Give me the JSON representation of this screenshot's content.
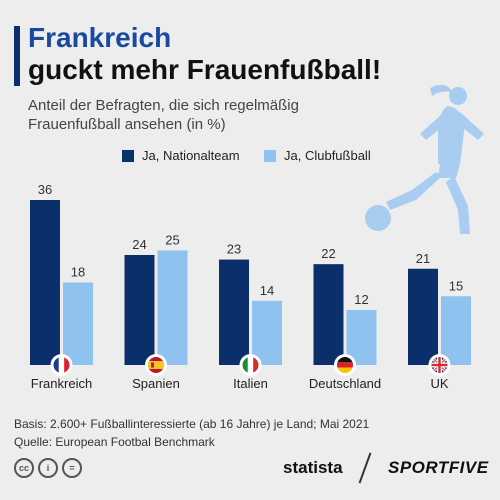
{
  "title_line1": "Frankreich",
  "title_line2": "guckt mehr Frauenfußball!",
  "subtitle": "Anteil der Befragten, die sich regelmäßig Frauenfußball ansehen (in %)",
  "footnote_basis": "Basis: 2.600+ Fußballinteressierte (ab 16 Jahre) je Land; Mai 2021",
  "footnote_source": "Quelle: European Footbal Benchmark",
  "brand_statista": "statista",
  "brand_sportfive": "SPORTFIVE",
  "colors": {
    "national": "#0a2f6b",
    "club": "#8fc2ee",
    "title_accent": "#1a4aa0"
  },
  "chart_data": {
    "type": "bar",
    "categories": [
      "Frankreich",
      "Spanien",
      "Italien",
      "Deutschland",
      "UK"
    ],
    "series": [
      {
        "name": "Ja, Nationalteam",
        "values": [
          36,
          24,
          23,
          22,
          21
        ]
      },
      {
        "name": "Ja, Clubfußball",
        "values": [
          18,
          25,
          14,
          12,
          15
        ]
      }
    ],
    "ylim": [
      0,
      36
    ],
    "grid": false,
    "legend": "top",
    "flags": [
      "fr",
      "es",
      "it",
      "de",
      "uk"
    ]
  }
}
